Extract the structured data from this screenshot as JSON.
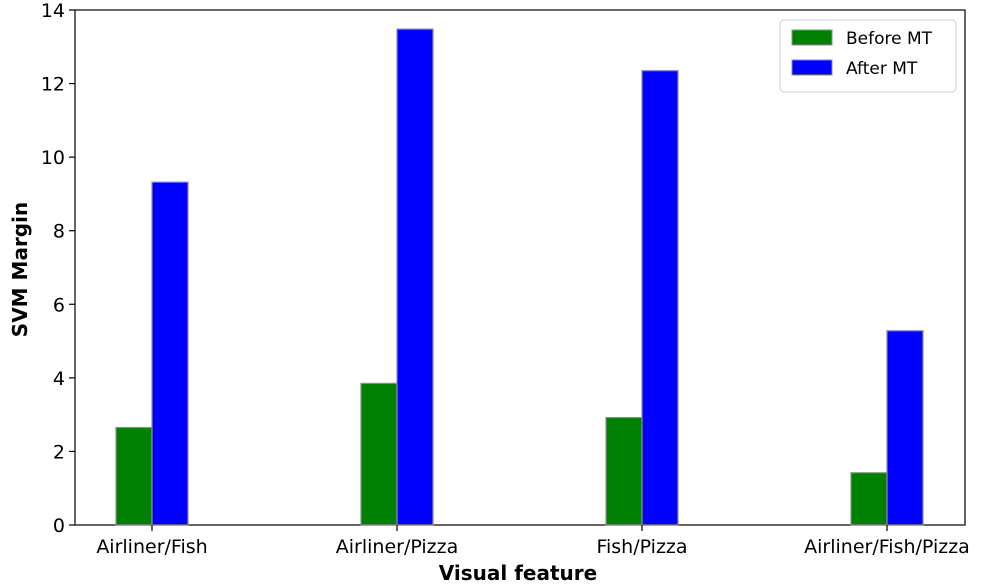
{
  "chart_data": {
    "type": "bar",
    "categories": [
      "Airliner/Fish",
      "Airliner/Pizza",
      "Fish/Pizza",
      "Airliner/Fish/Pizza"
    ],
    "series": [
      {
        "name": "Before MT",
        "values": [
          2.65,
          3.85,
          2.92,
          1.42
        ],
        "color": "#008000"
      },
      {
        "name": "After MT",
        "values": [
          9.32,
          13.48,
          12.35,
          5.28
        ],
        "color": "#0000ff"
      }
    ],
    "title": "",
    "xlabel": "Visual feature",
    "ylabel": "SVM Margin",
    "ylim": [
      0,
      14
    ],
    "yticks": [
      "0",
      "2",
      "4",
      "6",
      "8",
      "10",
      "12",
      "14"
    ],
    "grid": false,
    "legend_position": "top-right"
  }
}
